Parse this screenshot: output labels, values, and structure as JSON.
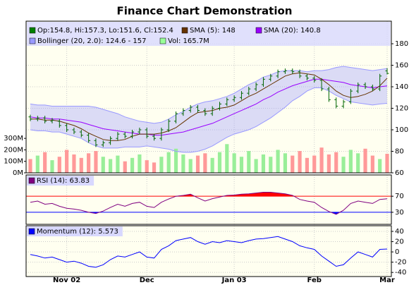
{
  "chart_data": [
    {
      "type": "ohlc",
      "title": "Finance Chart Demonstration",
      "categories": [
        null,
        null,
        null,
        null,
        null,
        "Nov 02",
        null,
        null,
        null,
        null,
        null,
        null,
        null,
        null,
        null,
        null,
        "Dec",
        null,
        null,
        null,
        null,
        null,
        null,
        null,
        null,
        null,
        null,
        null,
        "Jan 03",
        null,
        null,
        null,
        null,
        null,
        null,
        null,
        null,
        null,
        null,
        "Feb",
        null,
        null,
        null,
        null,
        null,
        null,
        null,
        null,
        null,
        "Mar"
      ],
      "open": [
        112,
        110,
        111,
        108,
        108,
        104,
        100,
        98,
        95,
        90,
        86,
        88,
        92,
        96,
        94,
        98,
        100,
        94,
        92,
        100,
        108,
        115,
        118,
        121,
        118,
        115,
        120,
        124,
        128,
        130,
        134,
        138,
        142,
        147,
        150,
        154,
        155,
        154,
        150,
        148,
        146,
        138,
        128,
        122,
        126,
        136,
        142,
        140,
        138,
        154.8
      ],
      "high": [
        114,
        113,
        113,
        111,
        110,
        106,
        102,
        100,
        97,
        92,
        90,
        94,
        98,
        98,
        100,
        102,
        102,
        96,
        102,
        110,
        117,
        120,
        123,
        123,
        120,
        122,
        126,
        130,
        132,
        136,
        140,
        144,
        149,
        152,
        156,
        157,
        157,
        156,
        152,
        150,
        148,
        140,
        130,
        128,
        138,
        144,
        144,
        142,
        152,
        157.3
      ],
      "low": [
        108,
        108,
        106,
        106,
        102,
        98,
        96,
        93,
        88,
        84,
        84,
        86,
        90,
        92,
        92,
        96,
        92,
        90,
        90,
        98,
        106,
        113,
        116,
        116,
        113,
        113,
        118,
        122,
        126,
        128,
        132,
        136,
        140,
        145,
        148,
        152,
        152,
        148,
        146,
        144,
        136,
        126,
        120,
        120,
        124,
        134,
        138,
        136,
        136,
        151.6
      ],
      "close": [
        110,
        111,
        108,
        109,
        104,
        100,
        98,
        95,
        90,
        86,
        88,
        92,
        96,
        94,
        98,
        100,
        94,
        92,
        100,
        108,
        115,
        118,
        121,
        118,
        115,
        120,
        124,
        128,
        130,
        134,
        138,
        142,
        147,
        150,
        154,
        155,
        154,
        150,
        148,
        146,
        138,
        128,
        122,
        126,
        136,
        142,
        140,
        138,
        150,
        152.4
      ],
      "color": "#006400",
      "ylim": [
        60,
        201
      ],
      "yticks": [
        60,
        80,
        100,
        120,
        140,
        160,
        180
      ],
      "grid": true,
      "legend": [
        {
          "text": "Op:154.8, Hi:157.3, Lo:151.6, Cl:152.4",
          "color": "#008000"
        },
        {
          "text": "SMA (5): 148",
          "color": "#663300"
        },
        {
          "text": "SMA (20): 140.8",
          "color": "#9900ff"
        },
        {
          "text": "Bollinger (20, 2.0): 124.6 - 157",
          "color": "#9999ff"
        },
        {
          "text": "Vol: 165.7M",
          "color": "#99ff99"
        }
      ],
      "sma5": {
        "color": "#663300",
        "values": [
          110,
          110,
          109,
          109,
          108,
          106,
          104,
          101,
          97,
          94,
          91,
          90,
          90,
          91,
          94,
          96,
          96,
          96,
          97,
          99,
          102,
          107,
          112,
          116,
          117,
          118,
          120,
          121,
          123,
          127,
          131,
          134,
          138,
          142,
          146,
          150,
          152,
          153,
          152,
          151,
          147,
          142,
          136,
          132,
          130,
          131,
          133,
          136,
          141,
          148
        ]
      },
      "sma20": {
        "color": "#9900ff",
        "values": [
          112,
          111,
          111,
          110,
          110,
          109,
          108,
          107,
          105,
          103,
          101,
          100,
          99,
          98,
          97,
          96,
          96,
          95,
          95,
          96,
          97,
          98,
          100,
          102,
          104,
          106,
          109,
          112,
          115,
          118,
          121,
          124,
          128,
          131,
          135,
          138,
          141,
          143,
          145,
          147,
          147,
          146,
          145,
          144,
          142,
          141,
          140,
          139,
          140,
          140.8
        ]
      },
      "bollinger": {
        "color": "#9999ff",
        "upper": [
          124,
          123,
          123,
          122,
          122,
          122,
          122,
          122,
          122,
          121,
          119,
          117,
          115,
          112,
          110,
          108,
          107,
          106,
          107,
          110,
          114,
          117,
          121,
          124,
          126,
          127,
          129,
          131,
          134,
          138,
          142,
          145,
          149,
          151,
          154,
          155,
          155,
          155,
          154,
          155,
          155,
          156,
          158,
          159,
          158,
          157,
          156,
          155,
          156,
          157
        ],
        "lower": [
          100,
          99,
          99,
          98,
          98,
          96,
          94,
          92,
          88,
          85,
          83,
          83,
          83,
          84,
          84,
          84,
          85,
          84,
          83,
          82,
          80,
          79,
          79,
          80,
          82,
          85,
          89,
          93,
          96,
          98,
          100,
          103,
          107,
          111,
          116,
          121,
          127,
          131,
          136,
          139,
          139,
          136,
          132,
          129,
          126,
          125,
          124,
          123,
          124,
          124.6
        ]
      },
      "volume": {
        "axis": "y2",
        "up_color": "#99ee99",
        "down_color": "#ff9999",
        "values": [
          120,
          150,
          180,
          110,
          140,
          200,
          160,
          130,
          170,
          190,
          140,
          120,
          150,
          100,
          130,
          160,
          110,
          90,
          140,
          180,
          210,
          160,
          120,
          150,
          170,
          130,
          180,
          250,
          170,
          140,
          190,
          120,
          160,
          140,
          200,
          170,
          150,
          190,
          130,
          150,
          220,
          160,
          180,
          140,
          200,
          170,
          210,
          150,
          120,
          165.7
        ]
      },
      "y2lim": [
        0,
        1320
      ],
      "y2ticks": [
        {
          "value": 0,
          "label": "0M"
        },
        {
          "value": 100,
          "label": "100M"
        },
        {
          "value": 200,
          "label": "200M"
        },
        {
          "value": 300,
          "label": "300M"
        }
      ]
    },
    {
      "type": "line",
      "legend": {
        "text": "RSI (14): 63.83",
        "color": "#800080"
      },
      "values": [
        55,
        58,
        50,
        52,
        45,
        40,
        38,
        35,
        30,
        27,
        33,
        42,
        50,
        45,
        52,
        55,
        45,
        42,
        55,
        63,
        70,
        72,
        75,
        66,
        58,
        64,
        68,
        72,
        73,
        75,
        76,
        78,
        80,
        80,
        78,
        76,
        72,
        62,
        58,
        55,
        42,
        32,
        25,
        35,
        52,
        58,
        55,
        52,
        62,
        63.83
      ],
      "color": "#800080",
      "ylim": [
        0,
        123
      ],
      "yticks": [
        30,
        70
      ],
      "tick_colors": [
        "#0000ff",
        "#ff0000"
      ]
    },
    {
      "type": "line",
      "legend": {
        "text": "Momentum (12): 5.573",
        "color": "#0000ff"
      },
      "values": [
        -5,
        -8,
        -12,
        -10,
        -15,
        -20,
        -18,
        -22,
        -28,
        -30,
        -25,
        -15,
        -8,
        -10,
        -5,
        0,
        -10,
        -12,
        5,
        12,
        22,
        25,
        28,
        20,
        15,
        20,
        18,
        22,
        20,
        18,
        22,
        25,
        26,
        28,
        30,
        25,
        20,
        12,
        8,
        5,
        -8,
        -18,
        -28,
        -25,
        -12,
        0,
        -5,
        -10,
        5,
        5.573
      ],
      "color": "#0000ff",
      "ylim": [
        -48,
        51
      ],
      "yticks": [
        -40,
        -20,
        0,
        20,
        40
      ],
      "grid": true
    }
  ]
}
